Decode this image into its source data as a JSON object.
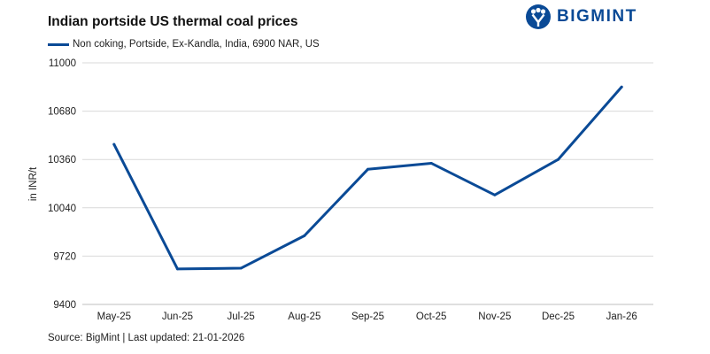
{
  "header": {
    "title": "Indian portside US thermal coal prices",
    "brand": "BIGMINT"
  },
  "footer": {
    "source": "Source: BigMint | Last updated: 21-01-2026"
  },
  "colors": {
    "series": "#0a4a96",
    "grid": "#d9d9d9",
    "brand": "#0a4a96"
  },
  "chart_data": {
    "type": "line",
    "title": "Indian portside US thermal coal prices",
    "xlabel": "",
    "ylabel": "in INR/t",
    "categories": [
      "May-25",
      "Jun-25",
      "Jul-25",
      "Aug-25",
      "Sep-25",
      "Oct-25",
      "Nov-25",
      "Dec-25",
      "Jan-26"
    ],
    "series": [
      {
        "name": "Non coking, Portside, Ex-Kandla, India, 6900 NAR, US",
        "values": [
          10460,
          9635,
          9640,
          9855,
          10295,
          10335,
          10125,
          10360,
          10840
        ]
      }
    ],
    "ylim": [
      9400,
      11000
    ],
    "yticks": [
      9400,
      9720,
      10040,
      10360,
      10680,
      11000
    ],
    "grid": true,
    "legend": "top-left"
  }
}
